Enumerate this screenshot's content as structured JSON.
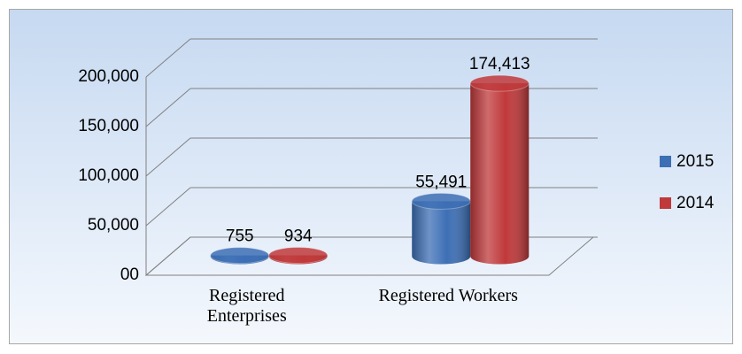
{
  "chart_data": {
    "type": "bar3d",
    "categories": [
      "Registered Enterprises",
      "Registered Workers"
    ],
    "series": [
      {
        "name": "2015",
        "color": "#3d6fb5",
        "values": [
          755,
          55491
        ],
        "value_labels": [
          "755",
          "55,491"
        ]
      },
      {
        "name": "2014",
        "color": "#c0393b",
        "values": [
          934,
          174413
        ],
        "value_labels": [
          "934",
          "174,413"
        ]
      }
    ],
    "ylim": [
      0,
      200000
    ],
    "yticks": [
      {
        "value": 0,
        "label": "00"
      },
      {
        "value": 50000,
        "label": "50,000"
      },
      {
        "value": 100000,
        "label": "100,000"
      },
      {
        "value": 150000,
        "label": "150,000"
      },
      {
        "value": 200000,
        "label": "200,000"
      }
    ],
    "grid": true,
    "legend": "right"
  }
}
